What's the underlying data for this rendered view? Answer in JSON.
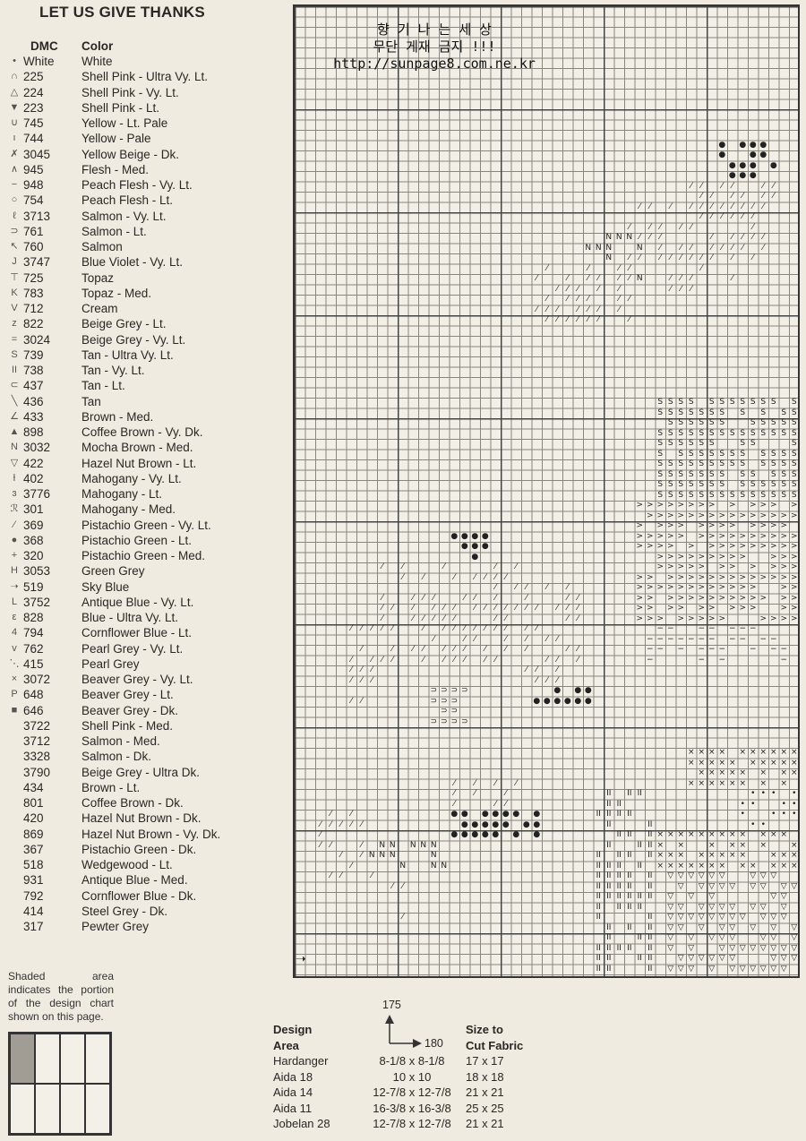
{
  "title": "LET US GIVE THANKS",
  "legend": {
    "headers": {
      "dmc": "DMC",
      "color": "Color"
    },
    "rows": [
      {
        "symbol": "•",
        "dmc": "White",
        "color": "White"
      },
      {
        "symbol": "∩",
        "dmc": "225",
        "color": "Shell Pink - Ultra Vy. Lt."
      },
      {
        "symbol": "△",
        "dmc": "224",
        "color": "Shell Pink - Vy. Lt."
      },
      {
        "symbol": "▼",
        "dmc": "223",
        "color": "Shell Pink - Lt."
      },
      {
        "symbol": "∪",
        "dmc": "745",
        "color": "Yellow - Lt. Pale"
      },
      {
        "symbol": "ı",
        "dmc": "744",
        "color": "Yellow - Pale"
      },
      {
        "symbol": "✗",
        "dmc": "3045",
        "color": "Yellow Beige - Dk."
      },
      {
        "symbol": "∧",
        "dmc": "945",
        "color": "Flesh - Med."
      },
      {
        "symbol": "−",
        "dmc": "948",
        "color": "Peach Flesh - Vy. Lt."
      },
      {
        "symbol": "○",
        "dmc": "754",
        "color": "Peach Flesh - Lt."
      },
      {
        "symbol": "ℓ",
        "dmc": "3713",
        "color": "Salmon - Vy. Lt."
      },
      {
        "symbol": "⊃",
        "dmc": "761",
        "color": "Salmon - Lt."
      },
      {
        "symbol": "↖",
        "dmc": "760",
        "color": "Salmon"
      },
      {
        "symbol": "J",
        "dmc": "3747",
        "color": "Blue Violet - Vy. Lt."
      },
      {
        "symbol": "⊤",
        "dmc": "725",
        "color": "Topaz"
      },
      {
        "symbol": "K",
        "dmc": "783",
        "color": "Topaz - Med."
      },
      {
        "symbol": "V",
        "dmc": "712",
        "color": "Cream"
      },
      {
        "symbol": "z",
        "dmc": "822",
        "color": "Beige Grey - Lt."
      },
      {
        "symbol": "=",
        "dmc": "3024",
        "color": "Beige Grey - Vy. Lt."
      },
      {
        "symbol": "S",
        "dmc": "739",
        "color": "Tan - Ultra Vy. Lt."
      },
      {
        "symbol": "II",
        "dmc": "738",
        "color": "Tan - Vy. Lt."
      },
      {
        "symbol": "⊂",
        "dmc": "437",
        "color": "Tan - Lt."
      },
      {
        "symbol": "╲",
        "dmc": "436",
        "color": "Tan"
      },
      {
        "symbol": "∠",
        "dmc": "433",
        "color": "Brown - Med."
      },
      {
        "symbol": "▲",
        "dmc": "898",
        "color": "Coffee Brown - Vy. Dk."
      },
      {
        "symbol": "N",
        "dmc": "3032",
        "color": "Mocha Brown - Med."
      },
      {
        "symbol": "▽",
        "dmc": "422",
        "color": "Hazel Nut Brown - Lt."
      },
      {
        "symbol": "ƚ",
        "dmc": "402",
        "color": "Mahogany - Vy. Lt."
      },
      {
        "symbol": "ɜ",
        "dmc": "3776",
        "color": "Mahogany - Lt."
      },
      {
        "symbol": "ℛ",
        "dmc": "301",
        "color": "Mahogany - Med."
      },
      {
        "symbol": "⁄",
        "dmc": "369",
        "color": "Pistachio Green - Vy. Lt."
      },
      {
        "symbol": "●",
        "dmc": "368",
        "color": "Pistachio Green - Lt."
      },
      {
        "symbol": "+",
        "dmc": "320",
        "color": "Pistachio Green - Med."
      },
      {
        "symbol": "H",
        "dmc": "3053",
        "color": "Green Grey"
      },
      {
        "symbol": "➝",
        "dmc": "519",
        "color": "Sky Blue"
      },
      {
        "symbol": "L",
        "dmc": "3752",
        "color": "Antique Blue - Vy. Lt."
      },
      {
        "symbol": "ε",
        "dmc": "828",
        "color": "Blue - Ultra Vy. Lt."
      },
      {
        "symbol": "4",
        "dmc": "794",
        "color": "Cornflower Blue - Lt."
      },
      {
        "symbol": "v",
        "dmc": "762",
        "color": "Pearl Grey - Vy. Lt."
      },
      {
        "symbol": "⋱",
        "dmc": "415",
        "color": "Pearl Grey"
      },
      {
        "symbol": "×",
        "dmc": "3072",
        "color": "Beaver Grey - Vy. Lt."
      },
      {
        "symbol": "P",
        "dmc": "648",
        "color": "Beaver Grey - Lt."
      },
      {
        "symbol": "■",
        "dmc": "646",
        "color": "Beaver Grey - Dk."
      },
      {
        "symbol": "",
        "dmc": "3722",
        "color": "Shell Pink - Med."
      },
      {
        "symbol": "",
        "dmc": "3712",
        "color": "Salmon - Med."
      },
      {
        "symbol": "",
        "dmc": "3328",
        "color": "Salmon - Dk."
      },
      {
        "symbol": "",
        "dmc": "3790",
        "color": "Beige Grey - Ultra Dk."
      },
      {
        "symbol": "",
        "dmc": "434",
        "color": "Brown - Lt."
      },
      {
        "symbol": "",
        "dmc": "801",
        "color": "Coffee Brown - Dk."
      },
      {
        "symbol": "",
        "dmc": "420",
        "color": "Hazel Nut Brown - Dk."
      },
      {
        "symbol": "",
        "dmc": "869",
        "color": "Hazel Nut Brown - Vy. Dk."
      },
      {
        "symbol": "",
        "dmc": "367",
        "color": "Pistachio Green - Dk."
      },
      {
        "symbol": "",
        "dmc": "518",
        "color": "Wedgewood - Lt."
      },
      {
        "symbol": "",
        "dmc": "931",
        "color": "Antique Blue - Med."
      },
      {
        "symbol": "",
        "dmc": "792",
        "color": "Cornflower Blue - Dk."
      },
      {
        "symbol": "",
        "dmc": "414",
        "color": "Steel Grey - Dk."
      },
      {
        "symbol": "",
        "dmc": "317",
        "color": "Pewter Grey"
      }
    ]
  },
  "note": "Shaded area indicates the portion of the design chart shown on this page.",
  "watermark": {
    "line1": "향 기 나 는 세 상",
    "line2": "무단 게재 금지 !!!",
    "line3": "http://sunpage8.com.ne.kr"
  },
  "directions": {
    "up": "175",
    "right": "180"
  },
  "sizes": {
    "headers": {
      "area": [
        "Design",
        "Area"
      ],
      "cut": [
        "Size to",
        "Cut Fabric"
      ]
    },
    "rows": [
      {
        "fabric": "Hardanger",
        "area": "8-1/8 x 8-1/8",
        "cut": "17 x 17"
      },
      {
        "fabric": "Aida 18",
        "area": "10 x 10",
        "cut": "18 x 18"
      },
      {
        "fabric": "Aida 14",
        "area": "12-7/8 x 12-7/8",
        "cut": "21 x 21"
      },
      {
        "fabric": "Aida 11",
        "area": "16-3/8 x 16-3/8",
        "cut": "25 x 25"
      },
      {
        "fabric": "Jobelan 28",
        "area": "12-7/8 x 12-7/8",
        "cut": "21 x 21"
      }
    ]
  }
}
